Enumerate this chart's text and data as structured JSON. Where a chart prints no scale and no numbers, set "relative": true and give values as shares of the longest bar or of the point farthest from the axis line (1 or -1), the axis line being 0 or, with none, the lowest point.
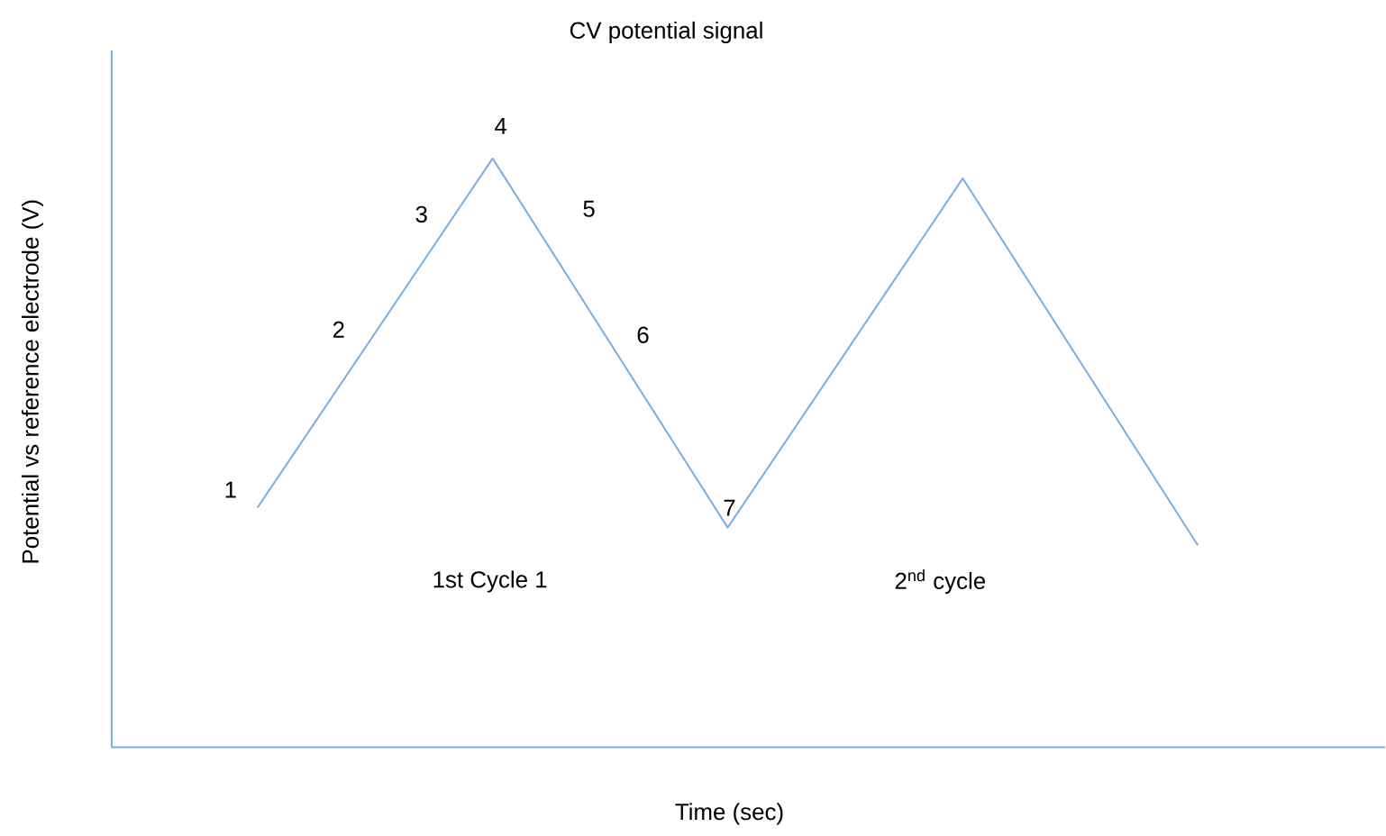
{
  "chart_data": {
    "type": "line",
    "title": "CV potential signal",
    "xlabel": "Time (sec)",
    "ylabel": "Potential vs reference electrode (V)",
    "relative": true,
    "color": "#7aaee0",
    "categories": [
      null,
      null,
      null,
      null,
      null
    ],
    "values": [
      0.407,
      1,
      0.373,
      0.966,
      0.343
    ],
    "annotations": [
      "1",
      "2",
      "3",
      "4",
      "5",
      "6",
      "7",
      "1st Cycle 1",
      "2$^{nd}$ cycle"
    ]
  }
}
